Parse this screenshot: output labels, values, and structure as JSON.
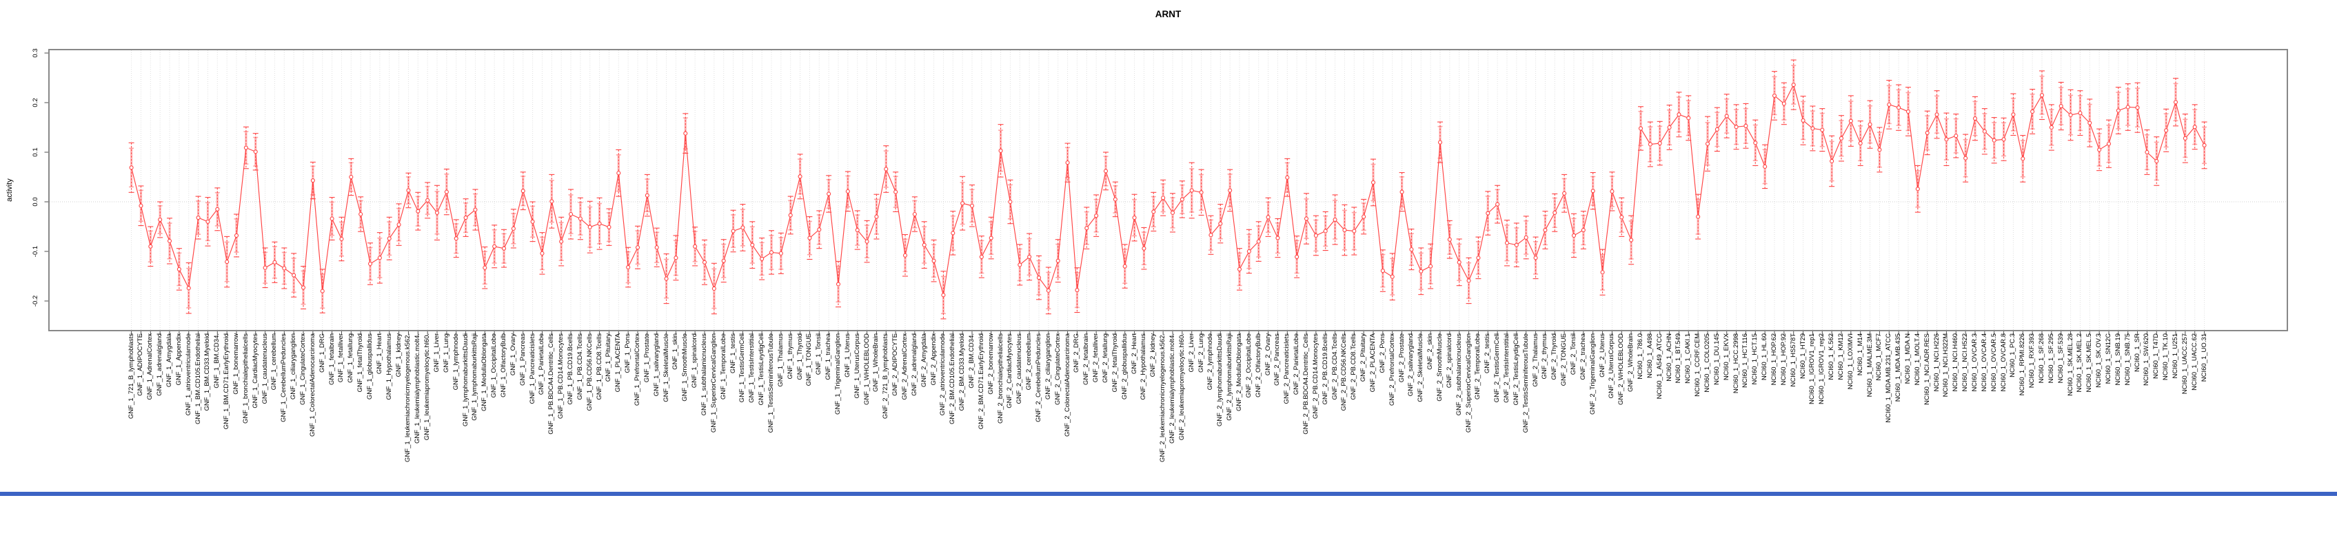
{
  "chart_data": {
    "type": "line",
    "title": "ARNT",
    "xlabel": "",
    "ylabel": "activity",
    "ytick_labels": [
      "0.3",
      "0.2",
      "0.1",
      "0.0",
      "-0.1",
      "-0.2"
    ],
    "ylim": [
      -0.26,
      0.307
    ],
    "grid": "vertical dotted gridline at every category; dotted horizontal line at y=0",
    "legend": "none",
    "marker": "open-circle",
    "error_bars": true,
    "categories": [
      "GNF_1_721_B_lymphoblasts",
      "GNF_1_ADIPOCYTE",
      "GNF_1_AdrenalCortex",
      "GNF_1_adrenalgland",
      "GNF_1_Amygdala",
      "GNF_1_Appendix",
      "GNF_1_atrioventricularnode",
      "GNF_1_BM.CD105.Endothelial",
      "GNF_1_BM.CD33.Myeloid",
      "GNF_1_BM.CD34.",
      "GNF_1_BM.CD71.EarlyErythroid",
      "GNF_1_bonemarrow",
      "GNF_1_bronchialepithelialcells",
      "GNF_1_CardiacMyocytes",
      "GNF_1_caudatenucleus",
      "GNF_1_cerebellum",
      "GNF_1_CerebellumPeduncles",
      "GNF_1_ciliaryganglion",
      "GNF_1_CingulateCortex",
      "GNF_1_ColorectalAdenocarcinoma",
      "GNF_1_DRG",
      "GNF_1_fetalbrain",
      "GNF_1_fetalliver",
      "GNF_1_fetallung",
      "GNF_1_fetalThyroid",
      "GNF_1_globuspallidus",
      "GNF_1_Heart",
      "GNF_1_Hypothalamus",
      "GNF_1_kidney",
      "GNF_1_leukemiachronicmyelogenous.k562.",
      "GNF_1_leukemialymphoblastic.molt4.",
      "GNF_1_leukemiapromyelocytic.hl60.",
      "GNF_1_Liver",
      "GNF_1_Lung",
      "GNF_1_lymphnode",
      "GNF_1_lymphomaburkittsDaudi",
      "GNF_1_lymphomaburkittsRaji",
      "GNF_1_MedullaOblongata",
      "GNF_1_OccipitalLobe",
      "GNF_1_OlfactoryBulb",
      "GNF_1_Ovary",
      "GNF_1_Pancreas",
      "GNF_1_Pancreaticislets",
      "GNF_1_ParietalLobe",
      "GNF_1_PB.BDCA4.Dentritic_Cells",
      "GNF_1_PB.CD14.Monocytes",
      "GNF_1_PB.CD19.Bcells",
      "GNF_1_PB.CD4.Tcells",
      "GNF_1_PB.CD56.NKCells",
      "GNF_1_PB.CD8.Tcells",
      "GNF_1_Pituitary",
      "GNF_1_PLACENTA",
      "GNF_1_Pons",
      "GNF_1_PrefrontalCortex",
      "GNF_1_Prostate",
      "GNF_1_salivarygland",
      "GNF_1_SkeletalMuscle",
      "GNF_1_skin",
      "GNF_1_SmoothMuscle",
      "GNF_1_spinalcord",
      "GNF_1_subthalamicnucleus",
      "GNF_1_SuperiorCervicalGanglion",
      "GNF_1_TemporalLobe",
      "GNF_1_testis",
      "GNF_1_TestisGermCell",
      "GNF_1_TestisInterstitial",
      "GNF_1_TestisLeydigCell",
      "GNF_1_TestisSeminiferousTubule",
      "GNF_1_Thalamus",
      "GNF_1_thymus",
      "GNF_1_Thyroid",
      "GNF_1_TONGUE",
      "GNF_1_Tonsil",
      "GNF_1_trachea",
      "GNF_1_TrigeminalGanglion",
      "GNF_1_Uterus",
      "GNF_1_UterusCorpus",
      "GNF_1_WHOLEBLOOD",
      "GNF_1_WholeBrain",
      "GNF_2_721_B_lymphoblasts",
      "GNF_2_ADIPOCYTE",
      "GNF_2_AdrenalCortex",
      "GNF_2_adrenalgland",
      "GNF_2_Amygdala",
      "GNF_2_Appendix",
      "GNF_2_atrioventricularnode",
      "GNF_2_BM.CD105.Endothelial",
      "GNF_2_BM.CD33.Myeloid",
      "GNF_2_BM.CD34.",
      "GNF_2_BM.CD71.EarlyErythroid",
      "GNF_2_bonemarrow",
      "GNF_2_bronchialepithelialcells",
      "GNF_2_CardiacMyocytes",
      "GNF_2_caudatenucleus",
      "GNF_2_cerebellum",
      "GNF_2_CerebellumPeduncles",
      "GNF_2_ciliaryganglion",
      "GNF_2_CingulateCortex",
      "GNF_2_ColorectalAdenocarcinoma",
      "GNF_2_DRG",
      "GNF_2_fetalbrain",
      "GNF_2_fetalliver",
      "GNF_2_fetallung",
      "GNF_2_fetalThyroid",
      "GNF_2_globuspallidus",
      "GNF_2_Heart",
      "GNF_2_Hypothalamus",
      "GNF_2_kidney",
      "GNF_2_leukemiachronicmyelogenous.k562.",
      "GNF_2_leukemialymphoblastic.molt4.",
      "GNF_2_leukemiapromyelocytic.hl60.",
      "GNF_2_Liver",
      "GNF_2_Lung",
      "GNF_2_lymphnode",
      "GNF_2_lymphomaburkittsDaudi",
      "GNF_2_lymphomaburkittsRaji",
      "GNF_2_MedullaOblongata",
      "GNF_2_OccipitalLobe",
      "GNF_2_OlfactoryBulb",
      "GNF_2_Ovary",
      "GNF_2_Pancreas",
      "GNF_2_Pancreaticislets",
      "GNF_2_ParietalLobe",
      "GNF_2_PB.BDCA4.Dentritic_Cells",
      "GNF_2_PB.CD14.Monocytes",
      "GNF_2_PB.CD19.Bcells",
      "GNF_2_PB.CD4.Tcells",
      "GNF_2_PB.CD56.NKCells",
      "GNF_2_PB.CD8.Tcells",
      "GNF_2_Pituitary",
      "GNF_2_PLACENTA",
      "GNF_2_Pons",
      "GNF_2_PrefrontalCortex",
      "GNF_2_Prostate",
      "GNF_2_salivarygland",
      "GNF_2_SkeletalMuscle",
      "GNF_2_skin",
      "GNF_2_SmoothMuscle",
      "GNF_2_spinalcord",
      "GNF_2_subthalamicnucleus",
      "GNF_2_SuperiorCervicalGanglion",
      "GNF_2_TemporalLobe",
      "GNF_2_testis",
      "GNF_2_TestisGermCell",
      "GNF_2_TestisInterstitial",
      "GNF_2_TestisLeydigCell",
      "GNF_2_TestisSeminiferousTubule",
      "GNF_2_Thalamus",
      "GNF_2_thymus",
      "GNF_2_Thyroid",
      "GNF_2_TONGUE",
      "GNF_2_Tonsil",
      "GNF_2_trachea",
      "GNF_2_TrigeminalGanglion",
      "GNF_2_Uterus",
      "GNF_2_UterusCorpus",
      "GNF_2_WHOLEBLOOD",
      "GNF_2_WholeBrain",
      "NCI60_1_786.0",
      "NCI60_1_A498",
      "NCI60_1_A549_ATCC",
      "NCI60_1_ACHN",
      "NCI60_1_BT.549",
      "NCI60_1_CAKI.1",
      "NCI60_1_CCRF.CEM",
      "NCI60_1_COLO205",
      "NCI60_1_DU.145",
      "NCI60_1_EKVX",
      "NCI60_1_HCC.2998",
      "NCI60_1_HCT.116",
      "NCI60_1_HCT.15",
      "NCI60_1_HL.60",
      "NCI60_1_HOP.62",
      "NCI60_1_HOP.92",
      "NCI60_1_HS578T",
      "NCI60_1_HT29",
      "NCI60_1_IGROV1_rep1",
      "NCI60_1_IGROV1_rep2",
      "NCI60_1_K.562",
      "NCI60_1_KM12",
      "NCI60_1_LOXIMVI",
      "NCI60_1_M14",
      "NCI60_1_MALME.3M",
      "NCI60_1_MCF7",
      "NCI60_1_MDA.MB.231_ATCC",
      "NCI60_1_MDA.MB.435",
      "NCI60_1_MDA.N",
      "NCI60_1_MOLT.4",
      "NCI60_1_NCI.ADR.RES",
      "NCI60_1_NCI.H226",
      "NCI60_1_NCI.H322M",
      "NCI60_1_NCI.H460",
      "NCI60_1_NCI.H522",
      "NCI60_1_OVCAR.3",
      "NCI60_1_OVCAR.4",
      "NCI60_1_OVCAR.5",
      "NCI60_1_OVCAR.8",
      "NCI60_1_PC.3",
      "NCI60_1_RPMI.8226",
      "NCI60_1_RXF.393",
      "NCI60_1_SF.268",
      "NCI60_1_SF.295",
      "NCI60_1_SF.539",
      "NCI60_1_SK.MEL.28",
      "NCI60_1_SK.MEL.2",
      "NCI60_1_SK.MEL.5",
      "NCI60_1_SK.OV.3",
      "NCI60_1_SN12C",
      "NCI60_1_SNB.19",
      "NCI60_1_SNB.75",
      "NCI60_1_SR",
      "NCI60_1_SW.620",
      "NCI60_1_T47D",
      "NCI60_1_TK.10",
      "NCI60_1_U251",
      "NCI60_1_UACC.257",
      "NCI60_1_UACC.62",
      "NCI60_1_UO.31"
    ],
    "values": [
      0.069,
      -0.008,
      -0.09,
      -0.036,
      -0.079,
      -0.136,
      -0.174,
      -0.032,
      -0.04,
      -0.015,
      -0.121,
      -0.068,
      0.109,
      0.101,
      -0.133,
      -0.122,
      -0.134,
      -0.148,
      -0.173,
      0.043,
      -0.18,
      -0.034,
      -0.075,
      0.05,
      -0.025,
      -0.125,
      -0.113,
      -0.074,
      -0.046,
      0.023,
      -0.019,
      0.003,
      -0.022,
      0.02,
      -0.074,
      -0.032,
      -0.016,
      -0.133,
      -0.09,
      -0.094,
      -0.054,
      0.022,
      -0.04,
      -0.104,
      0.001,
      -0.08,
      -0.025,
      -0.034,
      -0.051,
      -0.044,
      -0.051,
      0.058,
      -0.132,
      -0.092,
      0.013,
      -0.092,
      -0.155,
      -0.113,
      0.138,
      -0.09,
      -0.122,
      -0.175,
      -0.119,
      -0.059,
      -0.052,
      -0.087,
      -0.115,
      -0.102,
      -0.104,
      -0.027,
      0.051,
      -0.073,
      -0.056,
      0.016,
      -0.166,
      0.021,
      -0.057,
      -0.08,
      -0.03,
      0.066,
      0.02,
      -0.108,
      -0.025,
      -0.087,
      -0.119,
      -0.188,
      -0.063,
      -0.003,
      -0.008,
      -0.111,
      -0.073,
      0.103,
      0,
      -0.127,
      -0.111,
      -0.153,
      -0.179,
      -0.119,
      0.079,
      -0.178,
      -0.053,
      -0.028,
      0.062,
      0.005,
      -0.13,
      -0.032,
      -0.094,
      -0.02,
      0.008,
      -0.022,
      0.005,
      0.023,
      0.019,
      -0.067,
      -0.044,
      0.023,
      -0.136,
      -0.1,
      -0.08,
      -0.031,
      -0.073,
      0.049,
      -0.111,
      -0.034,
      -0.068,
      -0.059,
      -0.036,
      -0.057,
      -0.059,
      -0.03,
      0.039,
      -0.139,
      -0.151,
      0.02,
      -0.096,
      -0.14,
      -0.13,
      0.12,
      -0.076,
      -0.122,
      -0.159,
      -0.113,
      -0.023,
      -0.005,
      -0.083,
      -0.087,
      -0.072,
      -0.113,
      -0.057,
      -0.022,
      0.017,
      -0.068,
      -0.057,
      0.022,
      -0.142,
      0.021,
      -0.031,
      -0.077,
      0.148,
      0.116,
      0.118,
      0.15,
      0.176,
      0.169,
      -0.03,
      0.117,
      0.146,
      0.173,
      0.151,
      0.153,
      0.119,
      0.071,
      0.214,
      0.198,
      0.236,
      0.164,
      0.148,
      0.145,
      0.082,
      0.128,
      0.163,
      0.118,
      0.156,
      0.105,
      0.196,
      0.19,
      0.182,
      0.026,
      0.139,
      0.176,
      0.126,
      0.133,
      0.088,
      0.168,
      0.142,
      0.124,
      0.126,
      0.176,
      0.087,
      0.182,
      0.215,
      0.15,
      0.193,
      0.175,
      0.179,
      0.159,
      0.105,
      0.117,
      0.184,
      0.191,
      0.19,
      0.1,
      0.082,
      0.144,
      0.201,
      0.128,
      0.151,
      0.114
    ],
    "errors": [
      0.05,
      0.04,
      0.04,
      0.036,
      0.046,
      0.042,
      0.051,
      0.043,
      0.049,
      0.043,
      0.051,
      0.043,
      0.042,
      0.037,
      0.04,
      0.041,
      0.041,
      0.044,
      0.043,
      0.037,
      0.044,
      0.043,
      0.044,
      0.037,
      0.035,
      0.042,
      0.051,
      0.043,
      0.042,
      0.035,
      0.038,
      0.036,
      0.055,
      0.046,
      0.038,
      0.038,
      0.041,
      0.042,
      0.043,
      0.038,
      0.039,
      0.038,
      0.04,
      0.042,
      0.054,
      0.049,
      0.05,
      0.042,
      0.052,
      0.052,
      0.037,
      0.047,
      0.04,
      0.043,
      0.042,
      0.039,
      0.05,
      0.045,
      0.04,
      0.039,
      0.045,
      0.051,
      0.043,
      0.042,
      0.047,
      0.047,
      0.042,
      0.044,
      0.041,
      0.038,
      0.045,
      0.043,
      0.038,
      0.037,
      0.046,
      0.04,
      0.039,
      0.042,
      0.045,
      0.047,
      0.04,
      0.042,
      0.035,
      0.047,
      0.042,
      0.048,
      0.044,
      0.054,
      0.042,
      0.042,
      0.042,
      0.053,
      0.044,
      0.041,
      0.047,
      0.044,
      0.047,
      0.043,
      0.039,
      0.045,
      0.042,
      0.042,
      0.038,
      0.035,
      0.044,
      0.047,
      0.042,
      0.039,
      0.036,
      0.039,
      0.037,
      0.056,
      0.046,
      0.039,
      0.039,
      0.042,
      0.042,
      0.044,
      0.04,
      0.039,
      0.039,
      0.038,
      0.042,
      0.051,
      0.04,
      0.039,
      0.05,
      0.051,
      0.048,
      0.035,
      0.047,
      0.042,
      0.047,
      0.039,
      0.041,
      0.047,
      0.045,
      0.041,
      0.038,
      0.047,
      0.046,
      0.042,
      0.044,
      0.038,
      0.046,
      0.044,
      0.043,
      0.042,
      0.038,
      0.038,
      0.038,
      0.044,
      0.038,
      0.037,
      0.046,
      0.039,
      0.039,
      0.049,
      0.044,
      0.045,
      0.044,
      0.045,
      0.045,
      0.045,
      0.045,
      0.055,
      0.044,
      0.044,
      0.045,
      0.045,
      0.046,
      0.044,
      0.049,
      0.042,
      0.05,
      0.049,
      0.045,
      0.043,
      0.051,
      0.046,
      0.051,
      0.045,
      0.048,
      0.045,
      0.049,
      0.046,
      0.049,
      0.047,
      0.044,
      0.048,
      0.053,
      0.044,
      0.048,
      0.044,
      0.046,
      0.046,
      0.043,
      0.042,
      0.047,
      0.045,
      0.049,
      0.046,
      0.048,
      0.051,
      0.045,
      0.048,
      0.042,
      0.048,
      0.047,
      0.047,
      0.05,
      0.045,
      0.049,
      0.043,
      0.048,
      0.049,
      0.045,
      0.047
    ]
  },
  "colors": {
    "series": "#FF4343",
    "error_band": "#FF8A8A",
    "gridline": "#DEDEDE",
    "zero_line": "#CFCFCF",
    "plot_border": "#888888",
    "tick": "#4D4D4D",
    "text": "#000000",
    "background": "#FFFFFF",
    "bottom_bar": "#3C63C4"
  }
}
